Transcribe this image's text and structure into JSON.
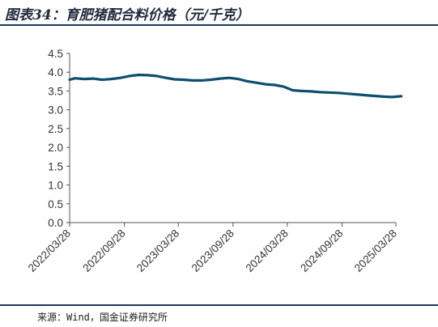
{
  "title": "图表34：育肥猪配合料价格（元/千克）",
  "source": "来源：Wind，国金证券研究所",
  "colors": {
    "line": "#0e4f6e",
    "axis": "#555555",
    "rule": "#1a3a5c"
  },
  "chart_data": {
    "type": "line",
    "title": "图表34：育肥猪配合料价格（元/千克）",
    "xlabel": "",
    "ylabel": "",
    "ylim": [
      0,
      4.5
    ],
    "yticks": [
      "0.0",
      "0.5",
      "1.0",
      "1.5",
      "2.0",
      "2.5",
      "3.0",
      "3.5",
      "4.0",
      "4.5"
    ],
    "xticks": [
      "2022/03/28",
      "2022/09/28",
      "2023/03/28",
      "2023/09/28",
      "2024/03/28",
      "2024/09/28",
      "2025/03/28"
    ],
    "grid": false,
    "legend": "none",
    "series": [
      {
        "x": [
          "2022/03/28",
          "2022/04/15",
          "2022/05/15",
          "2022/06/15",
          "2022/07/15",
          "2022/08/15",
          "2022/09/15",
          "2022/10/15",
          "2022/11/15",
          "2022/12/15",
          "2023/01/15",
          "2023/02/15",
          "2023/03/15",
          "2023/04/15",
          "2023/05/15",
          "2023/06/15",
          "2023/07/15",
          "2023/08/15",
          "2023/09/15",
          "2023/10/15",
          "2023/11/15",
          "2023/12/15",
          "2024/01/15",
          "2024/02/15",
          "2024/03/15",
          "2024/04/15",
          "2024/05/15",
          "2024/06/15",
          "2024/07/15",
          "2024/08/15",
          "2024/09/15",
          "2024/10/15",
          "2024/11/15",
          "2024/12/15",
          "2025/01/15",
          "2025/02/15",
          "2025/03/15",
          "2025/04/15"
        ],
        "values": [
          3.8,
          3.84,
          3.82,
          3.83,
          3.8,
          3.82,
          3.85,
          3.9,
          3.93,
          3.92,
          3.9,
          3.85,
          3.81,
          3.8,
          3.78,
          3.78,
          3.8,
          3.83,
          3.85,
          3.82,
          3.76,
          3.72,
          3.68,
          3.66,
          3.62,
          3.52,
          3.5,
          3.49,
          3.47,
          3.46,
          3.45,
          3.43,
          3.41,
          3.39,
          3.37,
          3.35,
          3.34,
          3.36
        ]
      }
    ]
  }
}
